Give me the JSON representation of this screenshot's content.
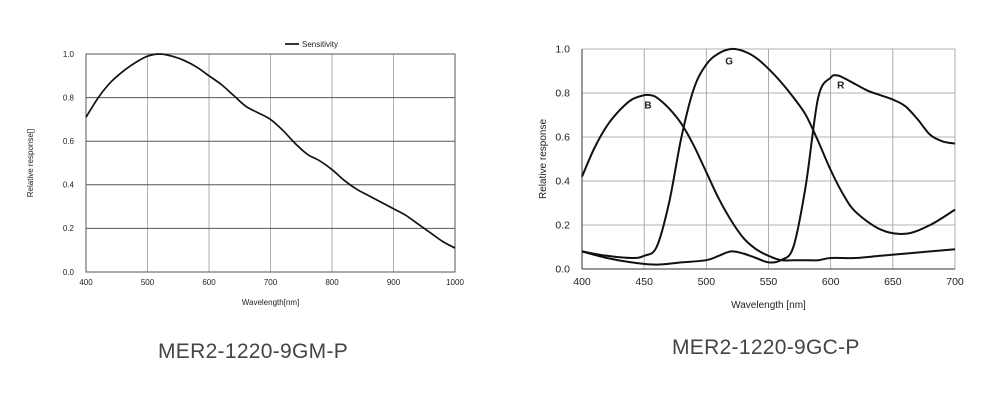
{
  "captions": {
    "left": "MER2-1220-9GM-P",
    "right": "MER2-1220-9GC-P"
  },
  "colors": {
    "line": "#111111",
    "grid": "#555555",
    "light_grid": "#9a9a9a"
  },
  "chart_data": [
    {
      "type": "line",
      "title": "",
      "xlabel": "Wavelength[nm]",
      "ylabel": "Relative response[]",
      "xlim": [
        400,
        1000
      ],
      "ylim": [
        0,
        1.0
      ],
      "x_ticks": [
        "400",
        "500",
        "600",
        "700",
        "800",
        "900",
        "1000"
      ],
      "y_ticks": [
        "0.0",
        "0.2",
        "0.4",
        "0.6",
        "0.8",
        "1.0"
      ],
      "grid": true,
      "legend": "top-center",
      "series": [
        {
          "name": "Sensitivity",
          "x": [
            400,
            420,
            440,
            460,
            480,
            500,
            520,
            540,
            560,
            580,
            600,
            620,
            640,
            660,
            680,
            700,
            720,
            740,
            760,
            780,
            800,
            820,
            840,
            860,
            880,
            900,
            920,
            940,
            960,
            980,
            1000
          ],
          "y": [
            0.71,
            0.8,
            0.87,
            0.92,
            0.96,
            0.99,
            1.0,
            0.99,
            0.97,
            0.94,
            0.9,
            0.86,
            0.81,
            0.76,
            0.73,
            0.7,
            0.65,
            0.59,
            0.54,
            0.51,
            0.47,
            0.42,
            0.38,
            0.35,
            0.32,
            0.29,
            0.26,
            0.22,
            0.18,
            0.14,
            0.11
          ]
        }
      ]
    },
    {
      "type": "line",
      "title": "",
      "xlabel": "Wavelength [nm]",
      "ylabel": "Relative response",
      "xlim": [
        400,
        700
      ],
      "ylim": [
        0,
        1.0
      ],
      "x_ticks": [
        "400",
        "450",
        "500",
        "550",
        "600",
        "650",
        "700"
      ],
      "y_ticks": [
        "0.0",
        "0.2",
        "0.4",
        "0.6",
        "0.8",
        "1.0"
      ],
      "grid": true,
      "series": [
        {
          "name": "B",
          "x": [
            400,
            410,
            420,
            430,
            440,
            450,
            455,
            460,
            470,
            480,
            490,
            500,
            510,
            520,
            530,
            540,
            550,
            560,
            570,
            580,
            590,
            600,
            620,
            640,
            660,
            680,
            700
          ],
          "y": [
            0.42,
            0.55,
            0.65,
            0.72,
            0.77,
            0.79,
            0.79,
            0.78,
            0.73,
            0.66,
            0.56,
            0.44,
            0.32,
            0.22,
            0.14,
            0.09,
            0.06,
            0.04,
            0.04,
            0.04,
            0.04,
            0.05,
            0.05,
            0.06,
            0.07,
            0.08,
            0.09
          ]
        },
        {
          "name": "G",
          "x": [
            400,
            420,
            440,
            450,
            460,
            470,
            480,
            490,
            500,
            510,
            520,
            530,
            540,
            550,
            560,
            570,
            580,
            590,
            600,
            610,
            620,
            640,
            660,
            680,
            700
          ],
          "y": [
            0.08,
            0.06,
            0.05,
            0.06,
            0.1,
            0.3,
            0.6,
            0.82,
            0.93,
            0.98,
            1.0,
            0.99,
            0.96,
            0.91,
            0.85,
            0.78,
            0.7,
            0.58,
            0.45,
            0.34,
            0.26,
            0.18,
            0.16,
            0.2,
            0.27
          ]
        },
        {
          "name": "R",
          "x": [
            400,
            420,
            440,
            460,
            480,
            500,
            510,
            520,
            530,
            540,
            550,
            560,
            570,
            580,
            590,
            600,
            605,
            610,
            620,
            630,
            640,
            650,
            660,
            670,
            680,
            690,
            700
          ],
          "y": [
            0.08,
            0.05,
            0.03,
            0.02,
            0.03,
            0.04,
            0.06,
            0.08,
            0.07,
            0.05,
            0.03,
            0.04,
            0.1,
            0.38,
            0.78,
            0.87,
            0.88,
            0.87,
            0.84,
            0.81,
            0.79,
            0.77,
            0.74,
            0.68,
            0.61,
            0.58,
            0.57
          ]
        }
      ]
    }
  ]
}
